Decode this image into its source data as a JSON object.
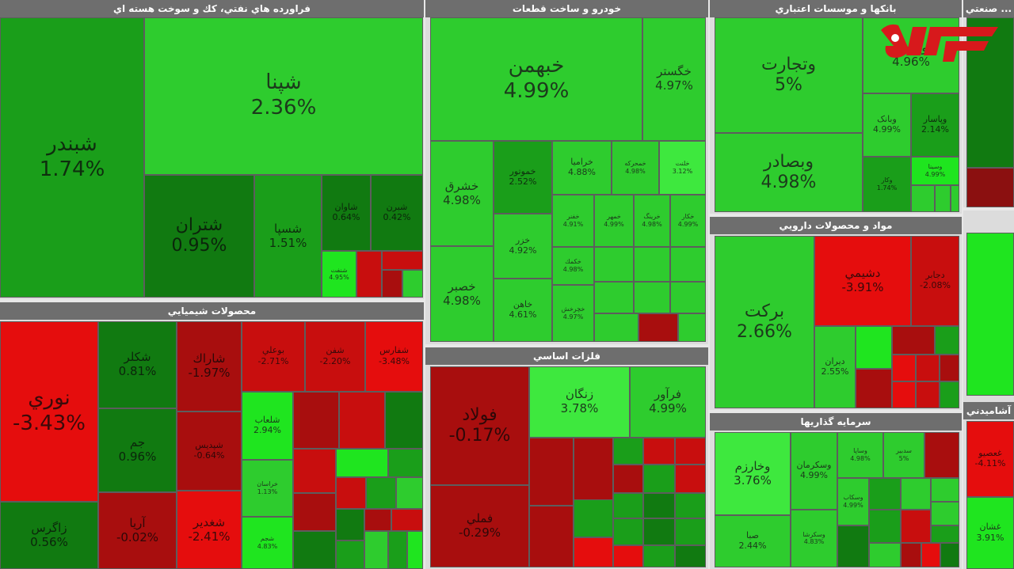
{
  "sectors": {
    "oil": {
      "title": "فراورده هاي نفتي، كك و سوخت هسته اي",
      "tiles": [
        {
          "sym": "شپنا",
          "pct": "2.36%"
        },
        {
          "sym": "شبندر",
          "pct": "1.74%"
        },
        {
          "sym": "شتران",
          "pct": "0.95%"
        },
        {
          "sym": "شسپا",
          "pct": "1.51%"
        },
        {
          "sym": "شاوان",
          "pct": "0.64%"
        },
        {
          "sym": "شبرن",
          "pct": "0.42%"
        },
        {
          "sym": "شنفت",
          "pct": "4.95%"
        }
      ]
    },
    "auto": {
      "title": "خودرو و ساخت قطعات",
      "tiles": [
        {
          "sym": "خبهمن",
          "pct": "4.99%"
        },
        {
          "sym": "خگستر",
          "pct": "4.97%"
        },
        {
          "sym": "خشرق",
          "pct": "4.98%"
        },
        {
          "sym": "خموتور",
          "pct": "2.52%"
        },
        {
          "sym": "خراميا",
          "pct": "4.88%"
        },
        {
          "sym": "خمحركه",
          "pct": "4.98%"
        },
        {
          "sym": "خلنت",
          "pct": "3.12%"
        },
        {
          "sym": "خزر",
          "pct": "4.92%"
        },
        {
          "sym": "خفنر",
          "pct": "4.91%"
        },
        {
          "sym": "خمهر",
          "pct": "4.99%"
        },
        {
          "sym": "خرينگ",
          "pct": "4.98%"
        },
        {
          "sym": "خكار",
          "pct": "4.99%"
        },
        {
          "sym": "خصبر",
          "pct": "4.98%"
        },
        {
          "sym": "خكمك",
          "pct": "4.98%"
        },
        {
          "sym": "خاهن",
          "pct": "4.61%"
        },
        {
          "sym": "خچرخش",
          "pct": "4.97%"
        }
      ]
    },
    "banks": {
      "title": "بانكها و موسسات اعتباري",
      "tiles": [
        {
          "sym": "وتجارت",
          "pct": "5%"
        },
        {
          "sym": "وپارس",
          "pct": "4.96%"
        },
        {
          "sym": "وبصادر",
          "pct": "4.98%"
        },
        {
          "sym": "وبانک",
          "pct": "4.99%"
        },
        {
          "sym": "وپاسار",
          "pct": "2.14%"
        },
        {
          "sym": "وكار",
          "pct": "1.74%"
        },
        {
          "sym": "وسينا",
          "pct": "4.99%"
        }
      ]
    },
    "industrial": {
      "title": "... صنعتي"
    },
    "chemical": {
      "title": "محصولات شيميايي",
      "tiles": [
        {
          "sym": "نوري",
          "pct": "-3.43%"
        },
        {
          "sym": "شكلر",
          "pct": "0.81%"
        },
        {
          "sym": "جم",
          "pct": "0.96%"
        },
        {
          "sym": "زاگرس",
          "pct": "0.56%"
        },
        {
          "sym": "شاراك",
          "pct": "-1.97%"
        },
        {
          "sym": "شپديس",
          "pct": "-0.64%"
        },
        {
          "sym": "آريا",
          "pct": "-0.02%"
        },
        {
          "sym": "شغدير",
          "pct": "-2.41%"
        },
        {
          "sym": "بوعلي",
          "pct": "-2.71%"
        },
        {
          "sym": "شفن",
          "pct": "-2.20%"
        },
        {
          "sym": "شفارس",
          "pct": "-3.48%"
        },
        {
          "sym": "شلعاب",
          "pct": "2.94%"
        },
        {
          "sym": "خراسان",
          "pct": "1.13%"
        },
        {
          "sym": "شجم",
          "pct": "4.83%"
        }
      ]
    },
    "metals": {
      "title": "فلزات اساسي",
      "tiles": [
        {
          "sym": "فولاد",
          "pct": "-0.17%"
        },
        {
          "sym": "زنگان",
          "pct": "3.78%"
        },
        {
          "sym": "فرآور",
          "pct": "4.99%"
        },
        {
          "sym": "فملي",
          "pct": "-0.29%"
        }
      ]
    },
    "pharma": {
      "title": "مواد و محصولات دارويي",
      "tiles": [
        {
          "sym": "بركت",
          "pct": "2.66%"
        },
        {
          "sym": "دشيمي",
          "pct": "-3.91%"
        },
        {
          "sym": "ديران",
          "pct": "2.55%"
        },
        {
          "sym": "دجابر",
          "pct": "-2.08%"
        }
      ]
    },
    "invest": {
      "title": "سرمايه گذاريها",
      "tiles": [
        {
          "sym": "وخارزم",
          "pct": "3.76%"
        },
        {
          "sym": "وسكرمان",
          "pct": "4.99%"
        },
        {
          "sym": "وساپا",
          "pct": "4.98%"
        },
        {
          "sym": "سدبير",
          "pct": "5%"
        },
        {
          "sym": "وسكاب",
          "pct": "4.99%"
        },
        {
          "sym": "صبا",
          "pct": "2.44%"
        },
        {
          "sym": "وسکرشا",
          "pct": "4.83%"
        }
      ]
    },
    "cement": {
      "title": "آشاميدني",
      "tiles": [
        {
          "sym": "غعصيو",
          "pct": "-4.11%"
        },
        {
          "sym": "غشان",
          "pct": "3.91%"
        }
      ]
    }
  },
  "logo": {
    "name": "rokna-logo",
    "color": "#d7191c"
  }
}
